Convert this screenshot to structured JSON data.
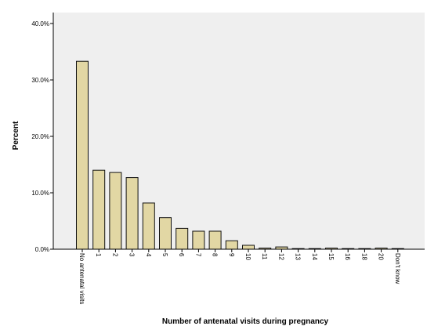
{
  "chart_data": {
    "type": "bar",
    "xlabel": "Number of antenatal visits during pregnancy",
    "ylabel": "Percent",
    "ylim": [
      0,
      40
    ],
    "yticks": [
      "0.0%",
      "10.0%",
      "20.0%",
      "30.0%",
      "40.0%"
    ],
    "categories": [
      "No antenatal visits",
      "1",
      "2",
      "3",
      "4",
      "5",
      "6",
      "7",
      "8",
      "9",
      "10",
      "11",
      "12",
      "13",
      "14",
      "15",
      "16",
      "18",
      "20",
      "Don't know"
    ],
    "values": [
      33.3,
      14.0,
      13.6,
      12.7,
      8.2,
      5.6,
      3.7,
      3.2,
      3.2,
      1.5,
      0.7,
      0.2,
      0.4,
      0.1,
      0.1,
      0.2,
      0.1,
      0.1,
      0.2,
      0.1
    ],
    "grid": false,
    "colors": {
      "bar_fill": "#e2d7a4",
      "bar_stroke": "#111111",
      "plot_background": "#efefef",
      "axis": "#000000"
    }
  }
}
